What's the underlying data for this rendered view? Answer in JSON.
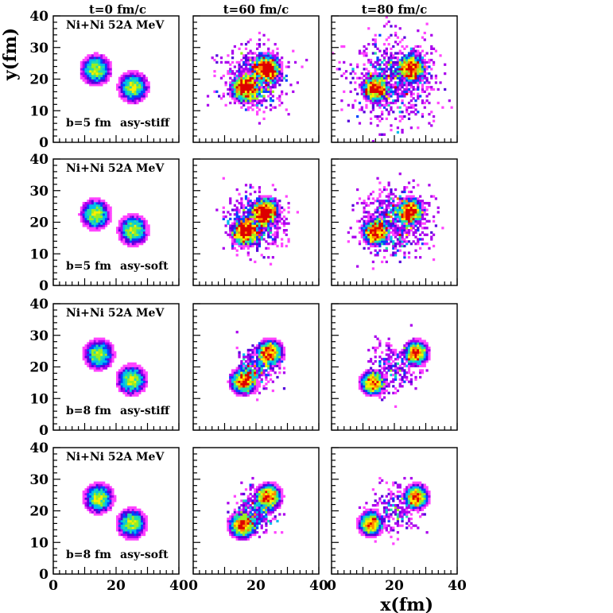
{
  "chart_data": {
    "type": "scatter",
    "description_axes": "x-y density maps",
    "xlabel": "x(fm)",
    "ylabel": "y(fm)",
    "xlim": [
      0,
      40
    ],
    "ylim": [
      0,
      40
    ],
    "xticks": [
      "0",
      "20",
      "40"
    ],
    "yticks": [
      "0",
      "10",
      "20",
      "30",
      "40"
    ],
    "column_titles": [
      "t=0 fm/c",
      "t=60 fm/c",
      "t=80 fm/c"
    ],
    "reaction_label": "Ni+Ni 52A MeV",
    "colormap": [
      "#ffffff",
      "#ff44ff",
      "#aa00ee",
      "#5500dd",
      "#0044ff",
      "#00bbee",
      "#22ddaa",
      "#99ee22",
      "#ffee00",
      "#ff8800",
      "#dd0000"
    ],
    "rows": [
      {
        "impact": "b=5 fm",
        "eos": "asy-stiff",
        "panels": [
          {
            "time": "t=0 fm/c",
            "blobs": [
              {
                "cx": 13.5,
                "cy": 23.0,
                "radius": 4.6,
                "peak": 0.75
              },
              {
                "cx": 25.5,
                "cy": 17.5,
                "radius": 4.6,
                "peak": 0.75
              }
            ],
            "halo": []
          },
          {
            "time": "t=60 fm/c",
            "blobs": [
              {
                "cx": 16.5,
                "cy": 17.0,
                "radius": 4.5,
                "peak": 0.95
              },
              {
                "cx": 23.5,
                "cy": 23.5,
                "radius": 4.5,
                "peak": 0.95
              }
            ],
            "halo": [
              {
                "cx": 20,
                "cy": 20,
                "spread": 7.5,
                "density": 0.8
              }
            ]
          },
          {
            "time": "t=80 fm/c",
            "blobs": [
              {
                "cx": 14.0,
                "cy": 17.0,
                "radius": 4.3,
                "peak": 0.95
              },
              {
                "cx": 25.5,
                "cy": 23.5,
                "radius": 4.3,
                "peak": 0.95
              }
            ],
            "halo": [
              {
                "cx": 20,
                "cy": 20,
                "spread": 10.5,
                "density": 1.0
              }
            ]
          }
        ]
      },
      {
        "impact": "b=5 fm",
        "eos": "asy-soft",
        "panels": [
          {
            "time": "t=0 fm/c",
            "blobs": [
              {
                "cx": 13.5,
                "cy": 22.5,
                "radius": 4.6,
                "peak": 0.75
              },
              {
                "cx": 25.5,
                "cy": 17.5,
                "radius": 4.6,
                "peak": 0.75
              }
            ],
            "halo": []
          },
          {
            "time": "t=60 fm/c",
            "blobs": [
              {
                "cx": 16.5,
                "cy": 17.0,
                "radius": 4.5,
                "peak": 0.95
              },
              {
                "cx": 23.0,
                "cy": 23.5,
                "radius": 4.5,
                "peak": 0.95
              }
            ],
            "halo": [
              {
                "cx": 20,
                "cy": 20,
                "spread": 7.0,
                "density": 0.7
              }
            ]
          },
          {
            "time": "t=80 fm/c",
            "blobs": [
              {
                "cx": 14.0,
                "cy": 17.0,
                "radius": 4.3,
                "peak": 0.95
              },
              {
                "cx": 25.0,
                "cy": 23.5,
                "radius": 4.3,
                "peak": 0.95
              }
            ],
            "halo": [
              {
                "cx": 20,
                "cy": 20,
                "spread": 8.5,
                "density": 0.8
              }
            ]
          }
        ]
      },
      {
        "impact": "b=8 fm",
        "eos": "asy-stiff",
        "panels": [
          {
            "time": "t=0 fm/c",
            "blobs": [
              {
                "cx": 14.5,
                "cy": 24.0,
                "radius": 4.6,
                "peak": 0.75
              },
              {
                "cx": 25.0,
                "cy": 16.0,
                "radius": 4.6,
                "peak": 0.75
              }
            ],
            "halo": []
          },
          {
            "time": "t=60 fm/c",
            "blobs": [
              {
                "cx": 16.0,
                "cy": 15.5,
                "radius": 4.3,
                "peak": 0.95
              },
              {
                "cx": 24.5,
                "cy": 24.5,
                "radius": 4.3,
                "peak": 0.95
              }
            ],
            "halo": [
              {
                "cx": 20,
                "cy": 20,
                "spread": 5.0,
                "density": 0.35
              }
            ]
          },
          {
            "time": "t=80 fm/c",
            "blobs": [
              {
                "cx": 13.0,
                "cy": 15.0,
                "radius": 4.0,
                "peak": 0.95
              },
              {
                "cx": 27.0,
                "cy": 24.5,
                "radius": 4.0,
                "peak": 0.95
              }
            ],
            "halo": [
              {
                "cx": 20,
                "cy": 20,
                "spread": 6.5,
                "density": 0.3
              }
            ]
          }
        ]
      },
      {
        "impact": "b=8 fm",
        "eos": "asy-soft",
        "panels": [
          {
            "time": "t=0 fm/c",
            "blobs": [
              {
                "cx": 14.5,
                "cy": 24.0,
                "radius": 4.6,
                "peak": 0.75
              },
              {
                "cx": 25.0,
                "cy": 16.0,
                "radius": 4.6,
                "peak": 0.75
              }
            ],
            "halo": []
          },
          {
            "time": "t=60 fm/c",
            "blobs": [
              {
                "cx": 15.5,
                "cy": 15.5,
                "radius": 4.3,
                "peak": 0.95
              },
              {
                "cx": 24.0,
                "cy": 24.5,
                "radius": 4.3,
                "peak": 0.95
              }
            ],
            "halo": [
              {
                "cx": 20,
                "cy": 20,
                "spread": 5.0,
                "density": 0.35
              }
            ]
          },
          {
            "time": "t=80 fm/c",
            "blobs": [
              {
                "cx": 12.5,
                "cy": 16.0,
                "radius": 4.0,
                "peak": 0.95
              },
              {
                "cx": 27.0,
                "cy": 24.5,
                "radius": 4.0,
                "peak": 0.95
              }
            ],
            "halo": [
              {
                "cx": 20,
                "cy": 20,
                "spread": 6.0,
                "density": 0.25
              }
            ]
          }
        ]
      }
    ]
  }
}
